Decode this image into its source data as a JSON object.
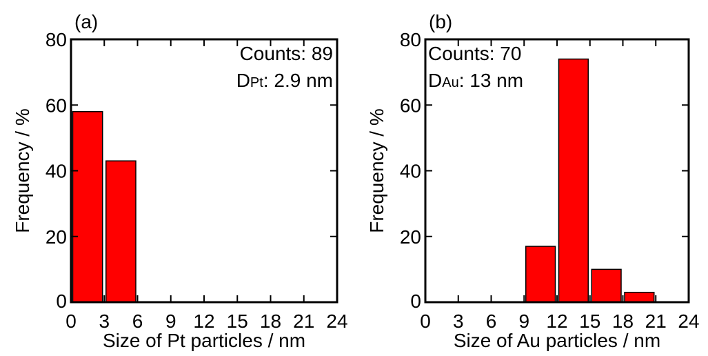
{
  "chart_data": [
    {
      "type": "bar",
      "panel_label": "(a)",
      "xlabel": "Size of Pt particles / nm",
      "ylabel": "Frequency / %",
      "xlim": [
        0,
        24
      ],
      "ylim": [
        0,
        80
      ],
      "xticks": [
        0,
        3,
        6,
        9,
        12,
        15,
        18,
        21,
        24
      ],
      "yticks": [
        0,
        20,
        40,
        60,
        80
      ],
      "bar_color": "#ff0000",
      "bars": [
        {
          "x_start": 0,
          "x_end": 3,
          "value": 58
        },
        {
          "x_start": 3,
          "x_end": 6,
          "value": 43
        }
      ],
      "annotation": {
        "counts": "Counts: 89",
        "d_prefix": "D",
        "d_sub": "Pt",
        "d_value": ": 2.9 nm",
        "placement": "top-right"
      }
    },
    {
      "type": "bar",
      "panel_label": "(b)",
      "xlabel": "Size of Au particles / nm",
      "ylabel": "Frequency / %",
      "xlim": [
        0,
        24
      ],
      "ylim": [
        0,
        80
      ],
      "xticks": [
        0,
        3,
        6,
        9,
        12,
        15,
        18,
        21,
        24
      ],
      "yticks": [
        0,
        20,
        40,
        60,
        80
      ],
      "bar_color": "#ff0000",
      "bars": [
        {
          "x_start": 9,
          "x_end": 12,
          "value": 17
        },
        {
          "x_start": 12,
          "x_end": 15,
          "value": 74
        },
        {
          "x_start": 15,
          "x_end": 18,
          "value": 10
        },
        {
          "x_start": 18,
          "x_end": 21,
          "value": 3
        }
      ],
      "annotation": {
        "counts": "Counts: 70",
        "d_prefix": "D",
        "d_sub": "Au",
        "d_value": ": 13 nm",
        "placement": "top-left"
      }
    }
  ]
}
